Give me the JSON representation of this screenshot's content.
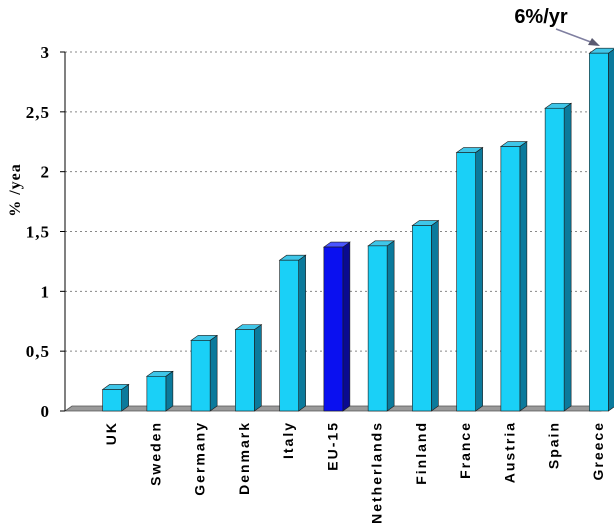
{
  "chart_data": {
    "type": "bar",
    "categories": [
      "UK",
      "Sweden",
      "Germany",
      "Denmark",
      "Italy",
      "EU-15",
      "Netherlands",
      "Finland",
      "France",
      "Austria",
      "Spain",
      "Greece"
    ],
    "values": [
      0.18,
      0.29,
      0.59,
      0.68,
      1.26,
      1.37,
      1.38,
      1.55,
      2.16,
      2.21,
      2.53,
      2.99
    ],
    "ylabel": "% /yea",
    "ylim": [
      0,
      3
    ],
    "yticks": [
      0,
      0.5,
      1,
      1.5,
      2,
      2.5,
      3
    ],
    "ytick_labels": [
      "0",
      "0,5",
      "1",
      "1,5",
      "2",
      "2,5",
      "3"
    ],
    "grid": true,
    "bar_color": "#1ad0f7",
    "highlight_category": "EU-15",
    "highlight_color": "#0a10f0",
    "annotation": "6%/yr"
  }
}
